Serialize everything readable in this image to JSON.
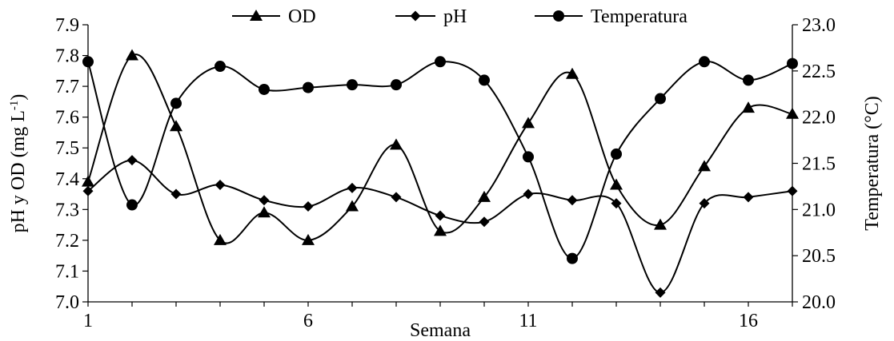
{
  "chart_data": {
    "type": "line",
    "title": "",
    "xlabel": "Semana",
    "ylabel_left": "pH y OD (mg L",
    "ylabel_left_sup": "-1",
    "ylabel_left_close": ")",
    "ylabel_right": "Temperatura (°C)",
    "x": [
      1,
      2,
      3,
      4,
      5,
      6,
      7,
      8,
      9,
      10,
      11,
      12,
      13,
      14,
      15,
      16,
      17
    ],
    "xlim": [
      1,
      17
    ],
    "xticks": [
      1,
      6,
      11,
      16
    ],
    "ylim_left": [
      7.0,
      7.9
    ],
    "yticks_left": [
      "7.0",
      "7.1",
      "7.2",
      "7.3",
      "7.4",
      "7.5",
      "7.6",
      "7.7",
      "7.8",
      "7.9"
    ],
    "ylim_right": [
      20.0,
      23.0
    ],
    "yticks_right": [
      "20.0",
      "20.5",
      "21.0",
      "21.5",
      "22.0",
      "22.5",
      "23.0"
    ],
    "legend_position": "top",
    "series": [
      {
        "name": "OD",
        "axis": "left",
        "marker": "triangle",
        "values": [
          7.39,
          7.8,
          7.57,
          7.2,
          7.29,
          7.2,
          7.31,
          7.51,
          7.23,
          7.34,
          7.58,
          7.74,
          7.38,
          7.25,
          7.44,
          7.63,
          7.61
        ]
      },
      {
        "name": "pH",
        "axis": "left",
        "marker": "diamond",
        "values": [
          7.36,
          7.46,
          7.35,
          7.38,
          7.33,
          7.31,
          7.37,
          7.34,
          7.28,
          7.26,
          7.35,
          7.33,
          7.32,
          7.03,
          7.32,
          7.34,
          7.36
        ]
      },
      {
        "name": "Temperatura",
        "axis": "right",
        "marker": "circle",
        "values": [
          22.6,
          21.05,
          22.15,
          22.55,
          22.3,
          22.32,
          22.35,
          22.35,
          22.6,
          22.4,
          21.57,
          20.47,
          21.6,
          22.2,
          22.6,
          22.4,
          22.58
        ]
      }
    ]
  }
}
